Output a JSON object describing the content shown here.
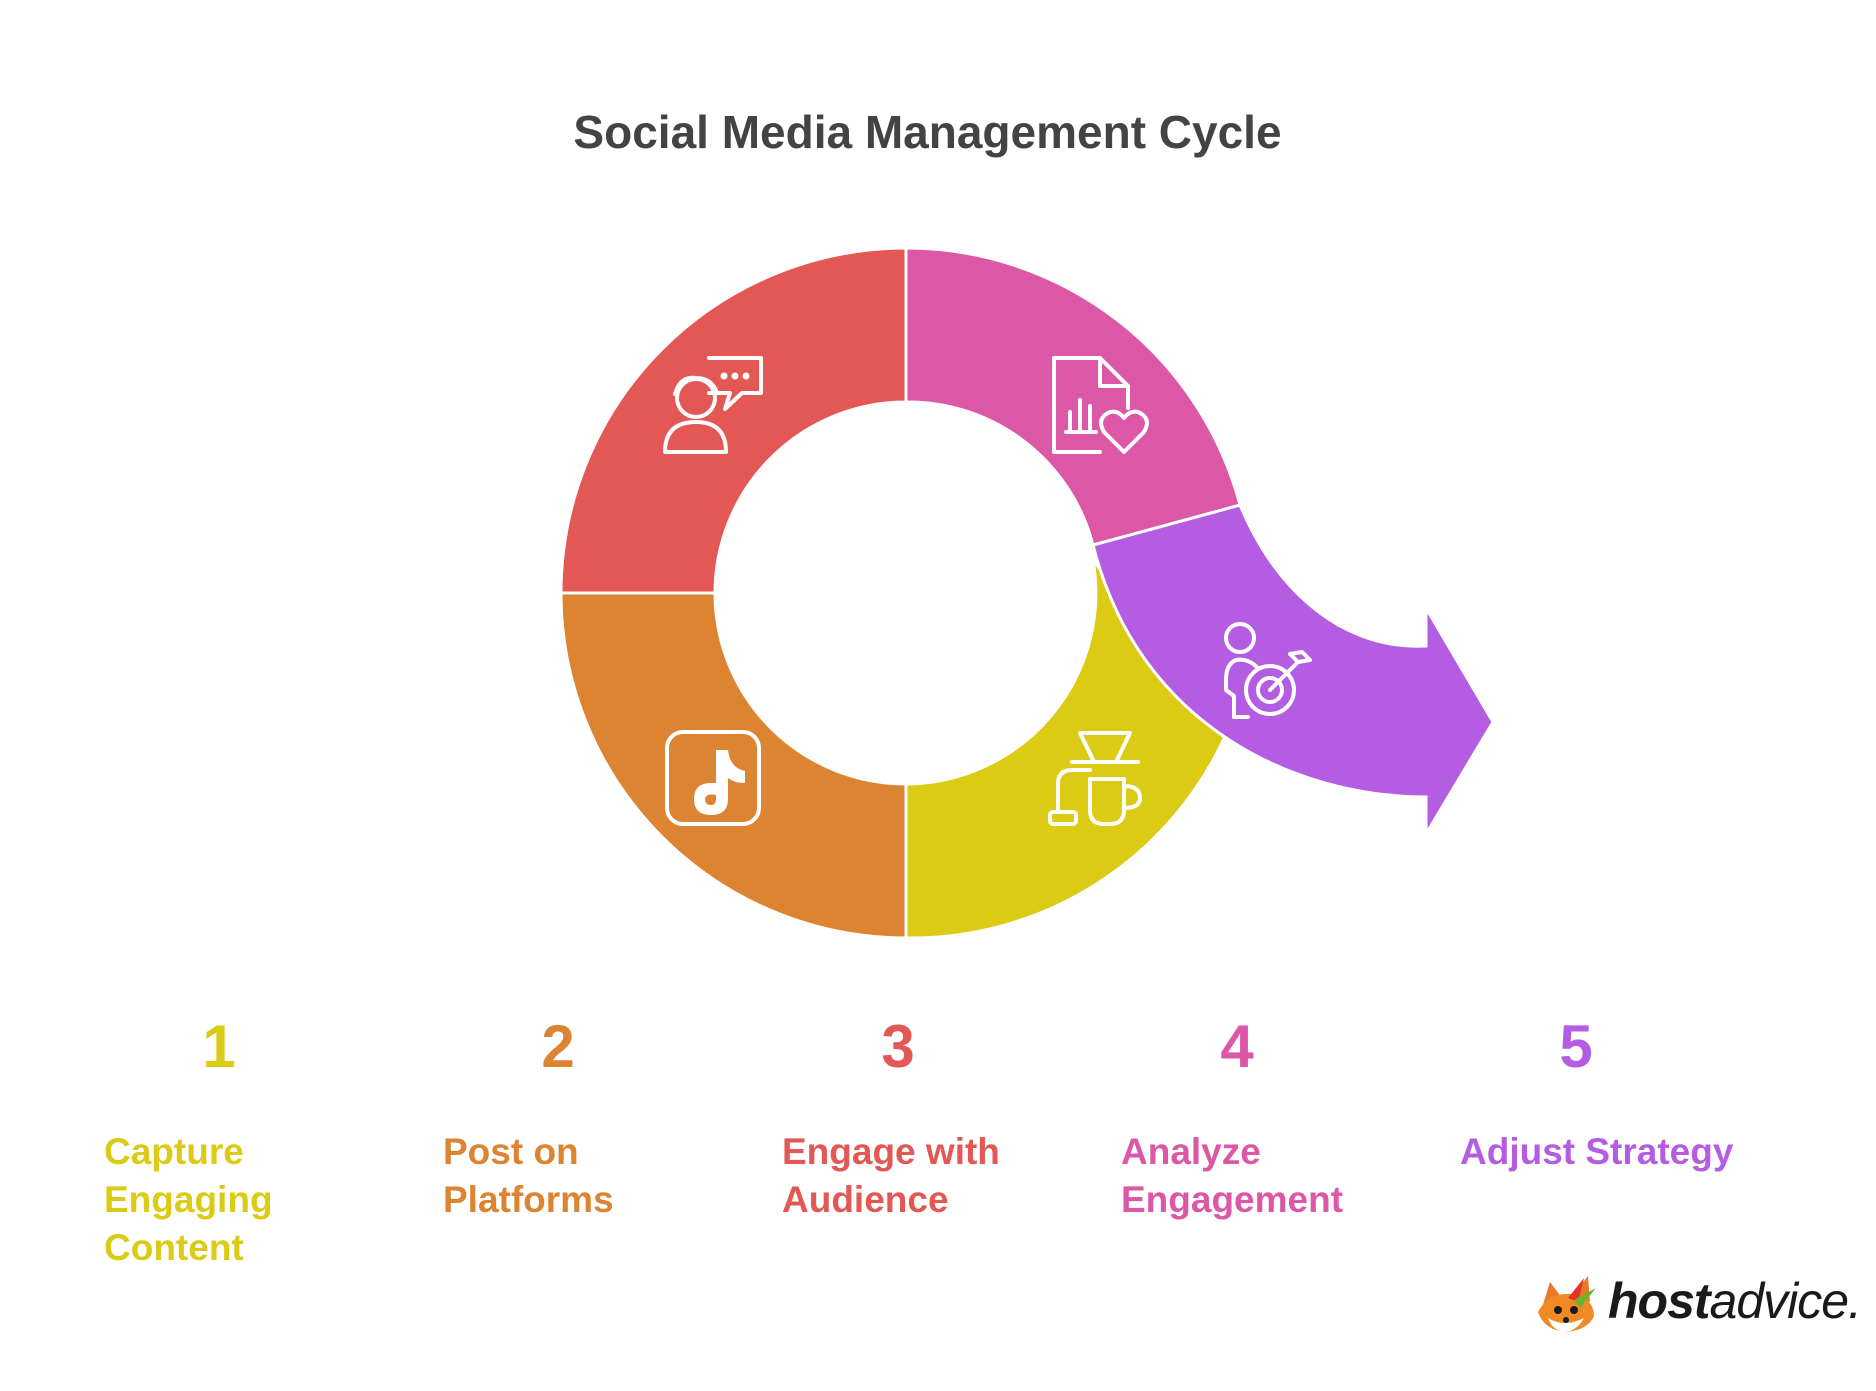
{
  "title": "Social Media Management Cycle",
  "steps": [
    {
      "number": "1",
      "label_lines": [
        "Capture",
        "Engaging",
        "Content"
      ],
      "color": "#DCCB14",
      "icon": "coffee-maker-icon"
    },
    {
      "number": "2",
      "label_lines": [
        "Post on",
        "Platforms"
      ],
      "color": "#DC8431",
      "icon": "tiktok-icon"
    },
    {
      "number": "3",
      "label_lines": [
        "Engage with",
        "Audience"
      ],
      "color": "#E35755",
      "icon": "person-chat-icon"
    },
    {
      "number": "4",
      "label_lines": [
        "Analyze",
        "Engagement"
      ],
      "color": "#DC57A6",
      "icon": "report-heart-icon"
    },
    {
      "number": "5",
      "label_lines": [
        "Adjust Strategy"
      ],
      "color": "#B45DE2",
      "icon": "person-target-icon"
    }
  ],
  "logo": {
    "host": "host",
    "advice": "advice."
  }
}
